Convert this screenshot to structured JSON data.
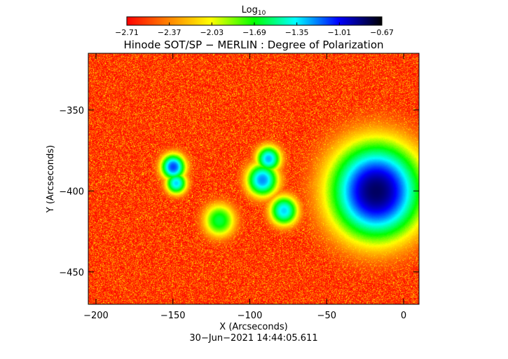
{
  "chart_data": {
    "type": "heatmap",
    "title": "Hinode SOT/SP − MERLIN : Degree of Polarization",
    "xlabel": "X (Arcseconds)",
    "ylabel": "Y (Arcseconds)",
    "xlim": [
      -205,
      10
    ],
    "ylim": [
      -470,
      -315
    ],
    "xticks": [
      -200,
      -150,
      -100,
      -50,
      0
    ],
    "xtick_labels": [
      "−200",
      "−150",
      "−100",
      "−50",
      "0"
    ],
    "yticks": [
      -350,
      -400,
      -450
    ],
    "ytick_labels": [
      "−350",
      "−400",
      "−450"
    ],
    "colorbar": {
      "label_main": "Log",
      "label_sub": "10",
      "min": -2.71,
      "max": -0.67,
      "ticks": [
        -2.71,
        -2.37,
        -2.03,
        -1.69,
        -1.35,
        -1.01,
        -0.67
      ],
      "tick_labels": [
        "−2.71",
        "−2.37",
        "−2.03",
        "−1.69",
        "−1.35",
        "−1.01",
        "−0.67"
      ],
      "colors": [
        "#ff0000",
        "#ff8000",
        "#ffff00",
        "#00ff00",
        "#00ffff",
        "#0000ff",
        "#000000"
      ]
    },
    "features": [
      {
        "x": -18,
        "y": -400,
        "peak": -0.8,
        "r": 26
      },
      {
        "x": -150,
        "y": -385,
        "peak": -1.1,
        "r": 7
      },
      {
        "x": -148,
        "y": -395,
        "peak": -1.3,
        "r": 6
      },
      {
        "x": -92,
        "y": -393,
        "peak": -1.2,
        "r": 9
      },
      {
        "x": -88,
        "y": -380,
        "peak": -1.25,
        "r": 7
      },
      {
        "x": -78,
        "y": -412,
        "peak": -1.3,
        "r": 8
      },
      {
        "x": -120,
        "y": -418,
        "peak": -1.6,
        "r": 9
      }
    ],
    "date_label": "30−Jun−2021 14:44:05.611",
    "grid": false
  }
}
